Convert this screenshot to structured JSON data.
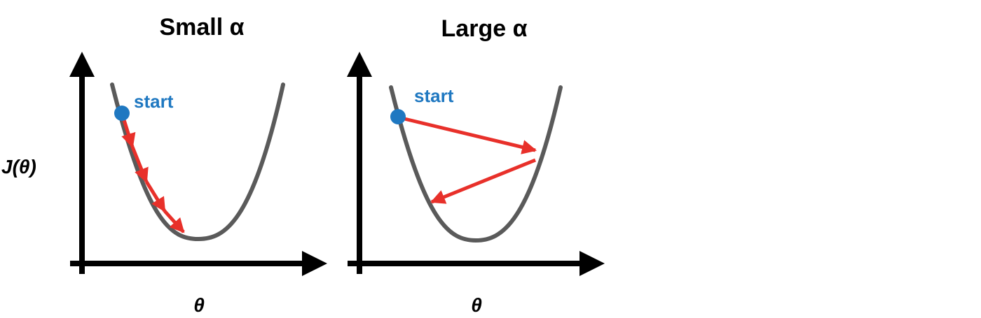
{
  "colors": {
    "axis": "#000000",
    "curve": "#5a5a5a",
    "arrow": "#e8302a",
    "start": "#1f78c1"
  },
  "y_axis_label": "J(θ)",
  "panels": [
    {
      "title": "Small α",
      "x_label": "θ",
      "start_label": "start"
    },
    {
      "title": "Large α",
      "x_label": "θ",
      "start_label": "start"
    }
  ]
}
